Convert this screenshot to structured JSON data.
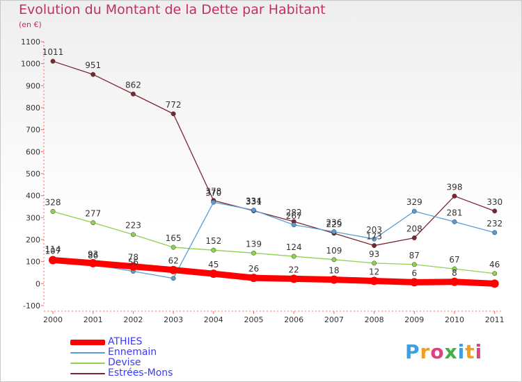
{
  "title": "Evolution du Montant de la Dette par Habitant",
  "subtitle": "(en €)",
  "logo": {
    "text": "Proxiti",
    "letters": [
      "P",
      "r",
      "o",
      "x",
      "i",
      "t",
      "i"
    ],
    "colors": [
      "#3aa0e0",
      "#f0a020",
      "#e04080",
      "#40b040",
      "#3aa0e0",
      "#f0a020",
      "#e04080"
    ]
  },
  "chart_data": {
    "type": "line",
    "x": [
      "2000",
      "2001",
      "2002",
      "2003",
      "2004",
      "2005",
      "2006",
      "2007",
      "2008",
      "2009",
      "2010",
      "2011"
    ],
    "y_ticks": [
      "-100",
      "0",
      "100",
      "200",
      "300",
      "400",
      "500",
      "600",
      "700",
      "800",
      "900",
      "1000",
      "1100"
    ],
    "ylim": [
      -100,
      1100
    ],
    "grid": false,
    "legend_position": "bottom-left",
    "series": [
      {
        "name": "ATHIES",
        "color": "#ff0000",
        "values": [
          107,
          93,
          78,
          62,
          45,
          26,
          22,
          18,
          12,
          6,
          8,
          0
        ],
        "labels": [
          "107",
          "93",
          "78",
          "62",
          "45",
          "26",
          "22",
          "18",
          "12",
          "6",
          "8",
          ""
        ]
      },
      {
        "name": "Ennemain",
        "color": "#5b9bd5",
        "values": [
          114,
          86,
          56,
          24,
          370,
          334,
          267,
          236,
          203,
          329,
          281,
          232
        ],
        "labels": [
          "114",
          "86",
          "56",
          "",
          "370",
          "334",
          "267",
          "236",
          "203",
          "329",
          "281",
          "232"
        ]
      },
      {
        "name": "Devise",
        "color": "#8fd14f",
        "values": [
          328,
          277,
          223,
          165,
          152,
          139,
          124,
          109,
          93,
          87,
          67,
          46
        ],
        "labels": [
          "328",
          "277",
          "223",
          "165",
          "152",
          "139",
          "124",
          "109",
          "93",
          "87",
          "67",
          "46"
        ]
      },
      {
        "name": "Estrées-Mons",
        "color": "#7b2630",
        "values": [
          1011,
          951,
          862,
          772,
          378,
          331,
          282,
          229,
          173,
          208,
          398,
          330
        ],
        "labels": [
          "1011",
          "951",
          "862",
          "772",
          "378",
          "331",
          "282",
          "229",
          "173",
          "208",
          "398",
          "330"
        ]
      }
    ]
  }
}
